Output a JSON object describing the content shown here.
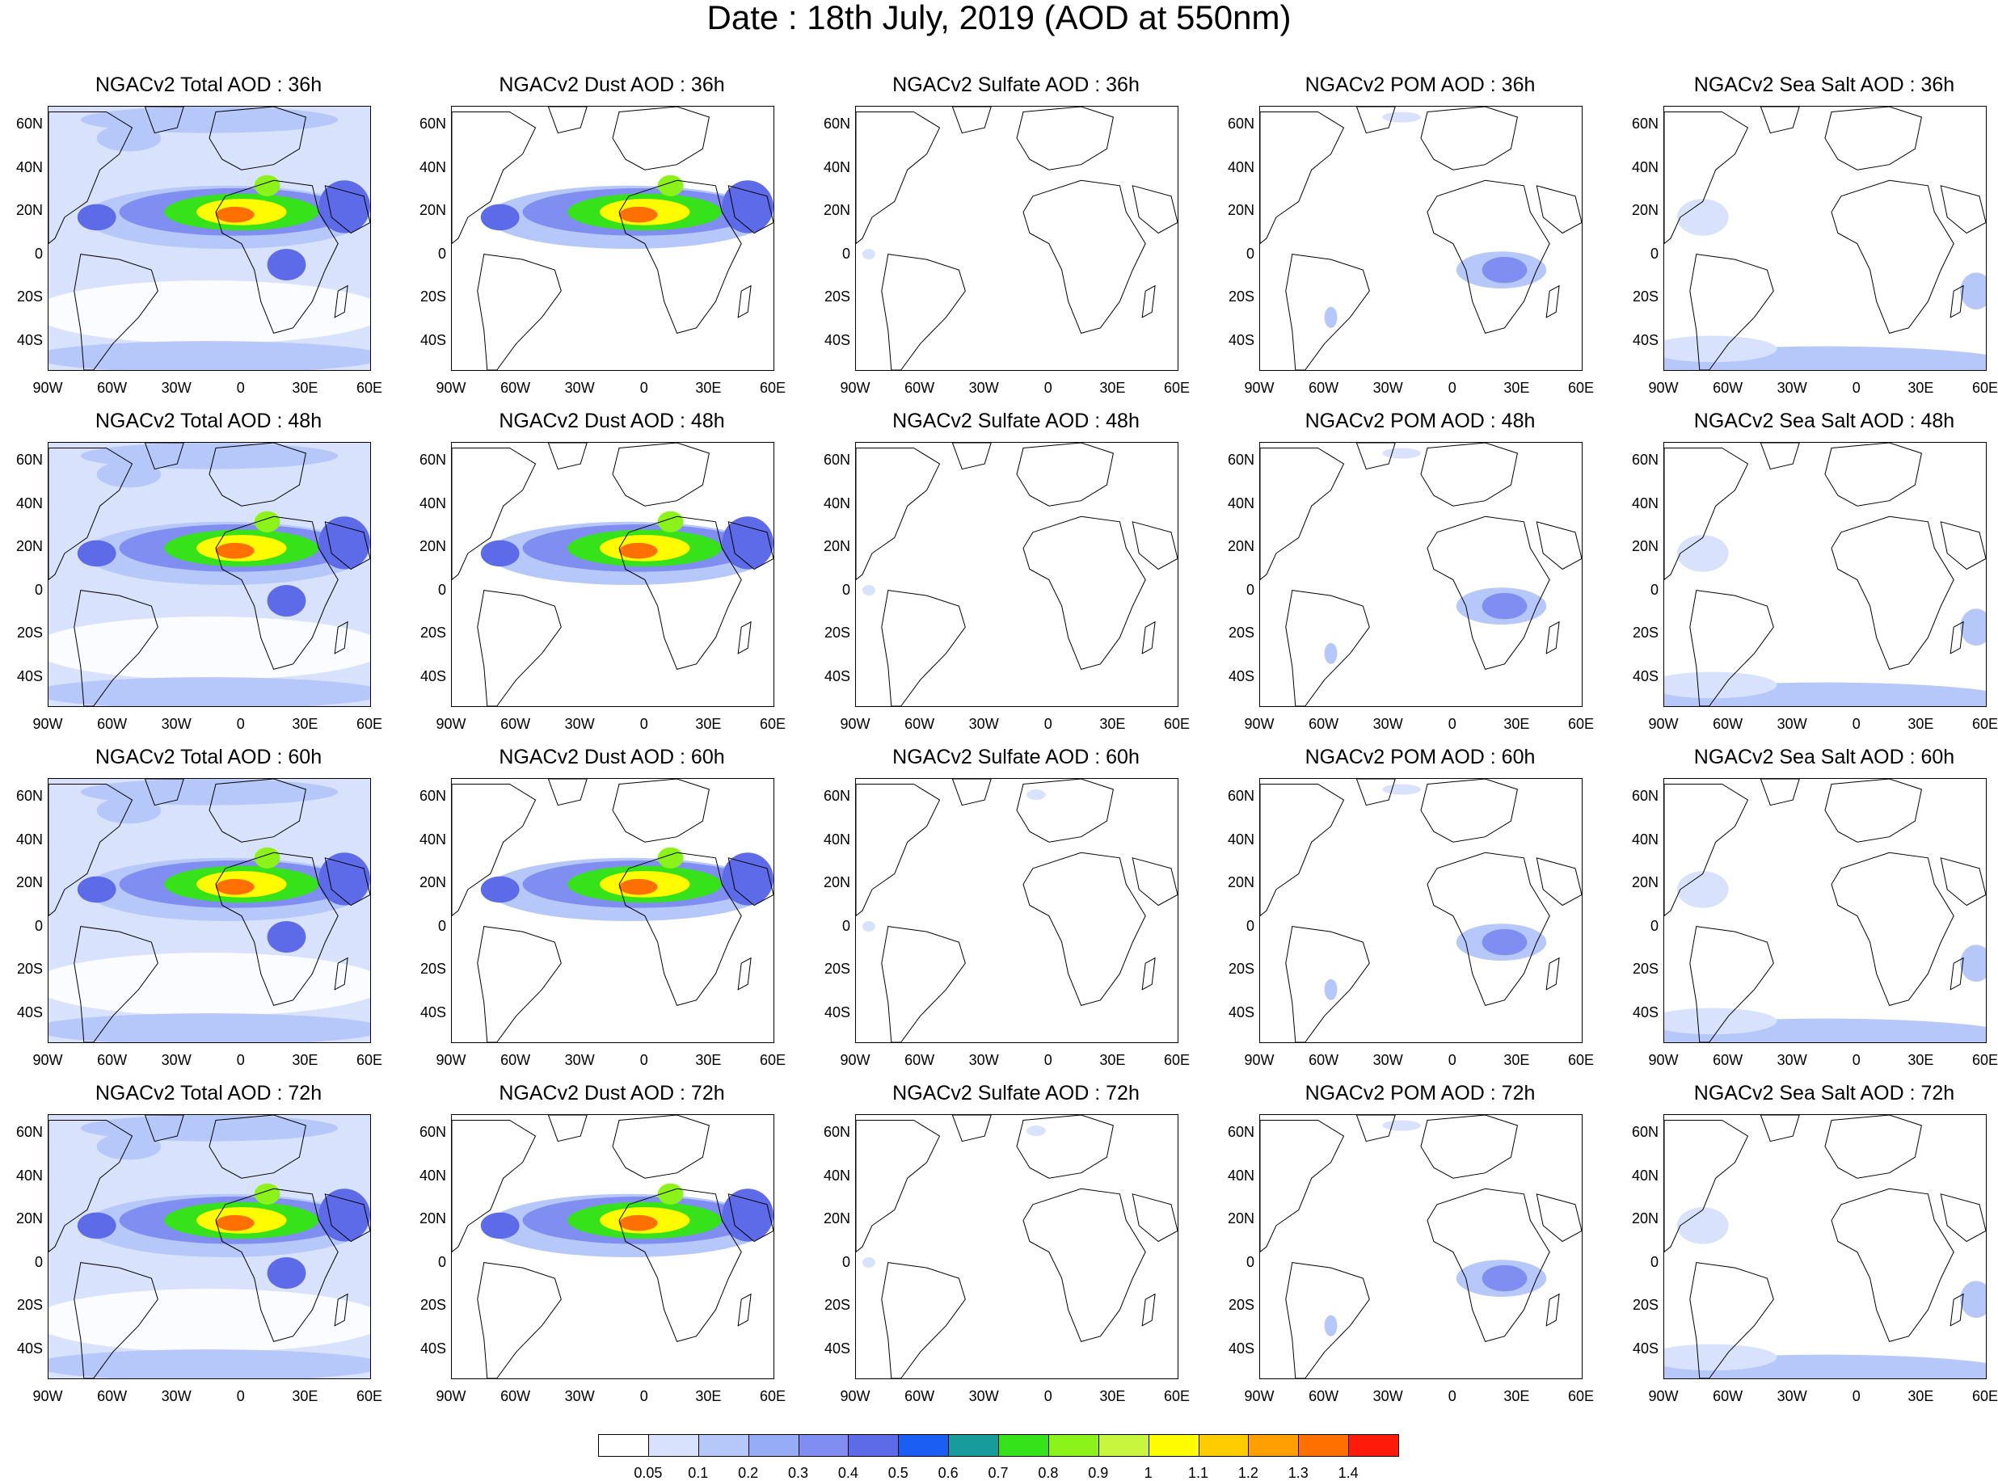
{
  "title": "Date : 18th July, 2019 (AOD at 550nm)",
  "lat_ticks": [
    "60N",
    "40N",
    "20N",
    "0",
    "20S",
    "40S"
  ],
  "lon_ticks": [
    "90W",
    "60W",
    "30W",
    "0",
    "30E",
    "60E"
  ],
  "panels": [
    [
      "NGACv2 Total AOD : 36h",
      "NGACv2 Dust AOD : 36h",
      "NGACv2 Sulfate AOD : 36h",
      "NGACv2 POM AOD : 36h",
      "NGACv2 Sea Salt AOD : 36h"
    ],
    [
      "NGACv2 Total AOD : 48h",
      "NGACv2 Dust AOD : 48h",
      "NGACv2 Sulfate AOD : 48h",
      "NGACv2 POM AOD : 48h",
      "NGACv2 Sea Salt AOD : 48h"
    ],
    [
      "NGACv2 Total AOD : 60h",
      "NGACv2 Dust AOD : 60h",
      "NGACv2 Sulfate AOD : 60h",
      "NGACv2 POM AOD : 60h",
      "NGACv2 Sea Salt AOD : 60h"
    ],
    [
      "NGACv2 Total AOD : 72h",
      "NGACv2 Dust AOD : 72h",
      "NGACv2 Sulfate AOD : 72h",
      "NGACv2 POM AOD : 72h",
      "NGACv2 Sea Salt  AOD : 72h"
    ]
  ],
  "colorbar": {
    "labels": [
      "0.05",
      "0.1",
      "0.2",
      "0.3",
      "0.4",
      "0.5",
      "0.6",
      "0.7",
      "0.8",
      "0.9",
      "1",
      "1.1",
      "1.2",
      "1.3",
      "1.4"
    ],
    "colors": [
      "#ffffff",
      "#d8e2fc",
      "#b6c7fa",
      "#97acf6",
      "#7f8ef0",
      "#5d6be8",
      "#1b5ff2",
      "#179b9b",
      "#36e21a",
      "#8bf21a",
      "#c8f53e",
      "#fffc00",
      "#ffcc00",
      "#ffa000",
      "#ff7000",
      "#ff1a0a"
    ]
  }
}
